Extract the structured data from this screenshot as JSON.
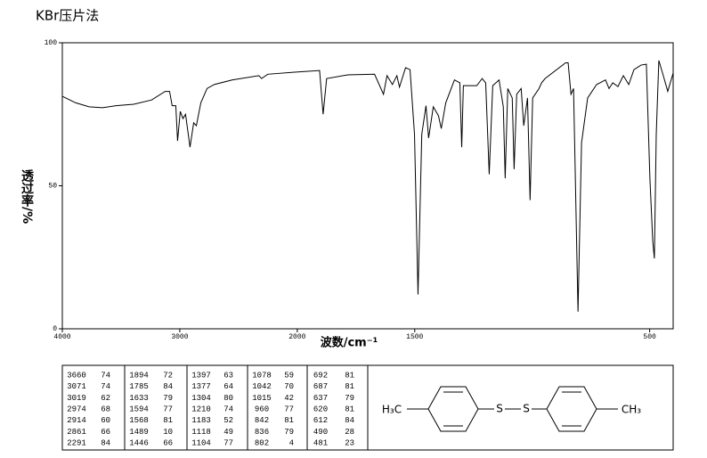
{
  "chart_data": {
    "type": "line",
    "title": "KBr压片法",
    "xlabel": "波数/cm⁻¹",
    "ylabel": "透过率/%",
    "xlim": [
      4000,
      400
    ],
    "ylim": [
      0,
      100
    ],
    "xticks": [
      4000,
      3000,
      2000,
      1500,
      500
    ],
    "yticks": [
      0,
      50,
      100
    ],
    "x_scale_break": 2000,
    "grid": false,
    "color": "#000000",
    "x": [
      4000,
      3886,
      3772,
      3658,
      3544,
      3392,
      3240,
      3125,
      3087,
      3065,
      3034,
      3019,
      2996,
      2973,
      2951,
      2913,
      2882,
      2859,
      2821,
      2768,
      2707,
      2555,
      2327,
      2304,
      2251,
      2023,
      1905,
      1890,
      1875,
      1784,
      1671,
      1633,
      1618,
      1595,
      1576,
      1565,
      1539,
      1520,
      1501,
      1486,
      1470,
      1452,
      1441,
      1421,
      1399,
      1387,
      1368,
      1331,
      1308,
      1300,
      1293,
      1236,
      1213,
      1198,
      1183,
      1168,
      1141,
      1123,
      1115,
      1104,
      1085,
      1077,
      1066,
      1047,
      1036,
      1020,
      1009,
      998,
      971,
      960,
      945,
      858,
      847,
      835,
      824,
      805,
      790,
      764,
      726,
      688,
      673,
      657,
      635,
      612,
      589,
      567,
      537,
      514,
      499,
      487,
      480,
      472,
      461,
      442,
      423,
      400
    ],
    "values": [
      81.3,
      79,
      77.6,
      77.3,
      78,
      78.5,
      80,
      83,
      83,
      78,
      78,
      65.7,
      76,
      73.5,
      75,
      63.5,
      72,
      71,
      79,
      84,
      85.4,
      87,
      88.5,
      87.5,
      89,
      89.7,
      90.3,
      75,
      87.5,
      88.8,
      89,
      82,
      88.5,
      85.4,
      88.5,
      84.5,
      91.3,
      90.6,
      68,
      12,
      68,
      78,
      66.7,
      77.6,
      74.5,
      70,
      79,
      87,
      86,
      63.5,
      85,
      85,
      87.5,
      86,
      54,
      85,
      87,
      77.6,
      52.6,
      84,
      80.7,
      55.8,
      82,
      84,
      71,
      80.7,
      45,
      80.7,
      84,
      86,
      87.5,
      93,
      93,
      82,
      84,
      6,
      65,
      80.7,
      85.4,
      87,
      84,
      86,
      84.7,
      88.5,
      85.4,
      90.6,
      92.2,
      92.5,
      52.6,
      30.8,
      24.6,
      68,
      93.8,
      88.5,
      83,
      89.4
    ]
  },
  "table": {
    "rows": [
      [
        3660,
        74,
        1894,
        72,
        1397,
        63,
        1078,
        59,
        692,
        81
      ],
      [
        3071,
        74,
        1785,
        84,
        1377,
        64,
        1042,
        70,
        687,
        81
      ],
      [
        3019,
        62,
        1633,
        79,
        1304,
        80,
        1015,
        42,
        637,
        79
      ],
      [
        2974,
        68,
        1594,
        77,
        1210,
        74,
        960,
        77,
        620,
        81
      ],
      [
        2914,
        60,
        1568,
        81,
        1183,
        52,
        842,
        81,
        612,
        84
      ],
      [
        2861,
        66,
        1489,
        10,
        1118,
        49,
        836,
        79,
        490,
        28
      ],
      [
        2291,
        84,
        1446,
        66,
        1104,
        77,
        802,
        4,
        481,
        23
      ]
    ]
  },
  "structure": {
    "left_group": "H₃C",
    "s1": "S",
    "s2": "S",
    "right_group": "CH₃"
  }
}
